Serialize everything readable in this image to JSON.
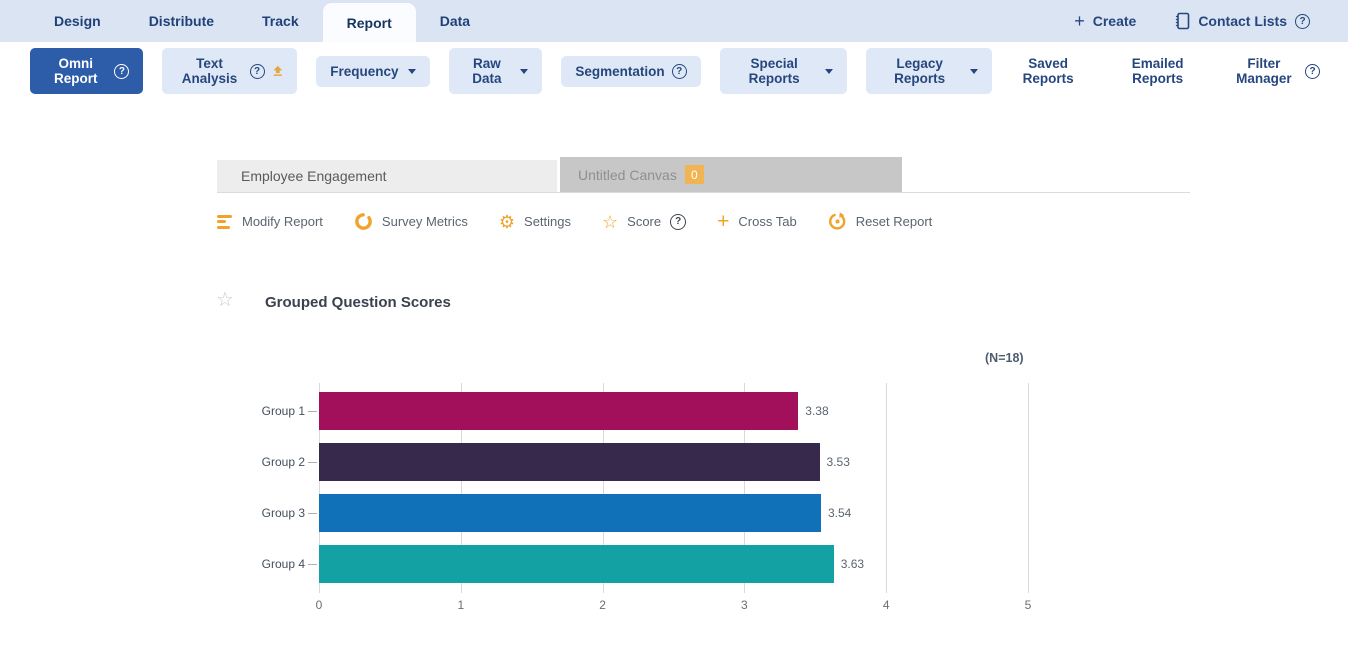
{
  "nav": {
    "tabs": [
      {
        "label": "Design",
        "active": false
      },
      {
        "label": "Distribute",
        "active": false
      },
      {
        "label": "Track",
        "active": false
      },
      {
        "label": "Report",
        "active": true
      },
      {
        "label": "Data",
        "active": false
      }
    ],
    "create_label": "Create",
    "contact_lists_label": "Contact Lists"
  },
  "toolbar": {
    "omni_report": "Omni Report",
    "text_analysis": "Text Analysis",
    "frequency": "Frequency",
    "raw_data": "Raw Data",
    "segmentation": "Segmentation",
    "special_reports": "Special Reports",
    "legacy_reports": "Legacy Reports",
    "saved_reports": "Saved Reports",
    "emailed_reports": "Emailed Reports",
    "filter_manager": "Filter Manager"
  },
  "canvas_tabs": {
    "report_tab": "Employee Engagement",
    "canvas_tab": "Untitled Canvas",
    "canvas_badge": "0"
  },
  "actions": {
    "modify_report": "Modify Report",
    "survey_metrics": "Survey Metrics",
    "settings": "Settings",
    "score": "Score",
    "cross_tab": "Cross Tab",
    "reset_report": "Reset Report"
  },
  "report": {
    "title": "Grouped Question Scores",
    "sample_label": "(N=18)"
  },
  "colors": {
    "primary_blue": "#2d5ca9",
    "nav_bg": "#dbe4f3",
    "icon_orange": "#f0a32a",
    "badge_orange": "#f0b452"
  },
  "chart_data": {
    "type": "bar",
    "orientation": "horizontal",
    "title": "Grouped Question Scores",
    "annotation": "(N=18)",
    "categories": [
      "Group 1",
      "Group 2",
      "Group 3",
      "Group 4"
    ],
    "values": [
      3.38,
      3.53,
      3.54,
      3.63
    ],
    "value_labels": [
      "3.38",
      "3.53",
      "3.54",
      "3.63"
    ],
    "bar_colors": [
      "#a2105c",
      "#36294c",
      "#1171b8",
      "#13a1a3"
    ],
    "xlabel": "",
    "ylabel": "",
    "xlim": [
      0,
      5
    ],
    "x_ticks": [
      0,
      1,
      2,
      3,
      4,
      5
    ],
    "grid": "vertical",
    "legend": false
  }
}
